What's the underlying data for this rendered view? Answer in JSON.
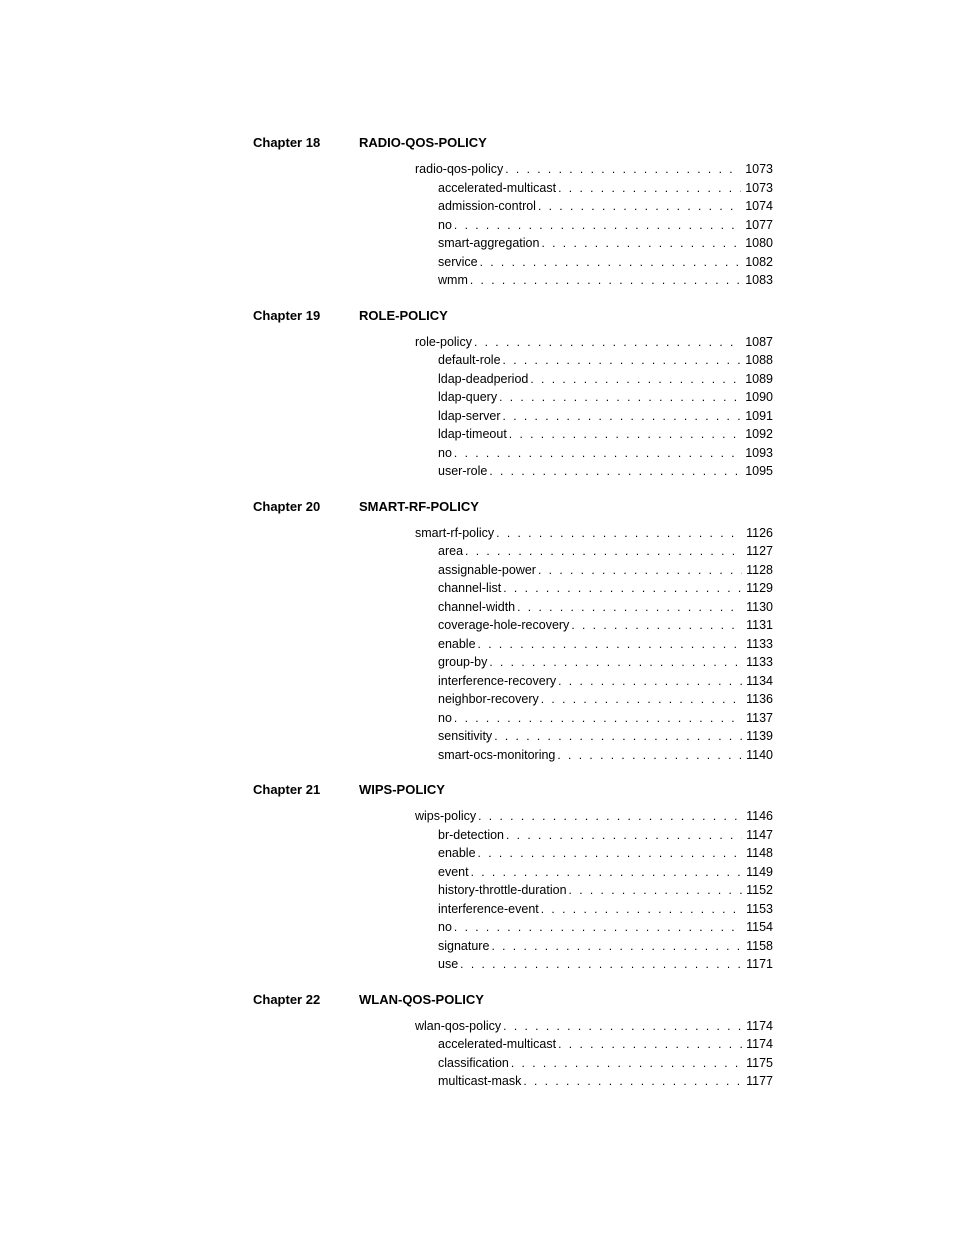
{
  "chapters": [
    {
      "num": "Chapter 18",
      "title": "RADIO-QOS-POLICY",
      "top_entries": [
        {
          "label": "radio-qos-policy",
          "page": "1073"
        }
      ],
      "sub_entries": [
        {
          "label": "accelerated-multicast",
          "page": "1073"
        },
        {
          "label": "admission-control",
          "page": "1074"
        },
        {
          "label": "no",
          "page": "1077"
        },
        {
          "label": "smart-aggregation",
          "page": "1080"
        },
        {
          "label": "service",
          "page": "1082"
        },
        {
          "label": "wmm",
          "page": "1083"
        }
      ]
    },
    {
      "num": "Chapter 19",
      "title": "ROLE-POLICY",
      "top_entries": [
        {
          "label": "role-policy",
          "page": "1087"
        }
      ],
      "sub_entries": [
        {
          "label": "default-role",
          "page": "1088"
        },
        {
          "label": "ldap-deadperiod",
          "page": "1089"
        },
        {
          "label": "ldap-query",
          "page": "1090"
        },
        {
          "label": "ldap-server",
          "page": "1091"
        },
        {
          "label": "ldap-timeout",
          "page": "1092"
        },
        {
          "label": "no",
          "page": "1093"
        },
        {
          "label": "user-role",
          "page": "1095"
        }
      ]
    },
    {
      "num": "Chapter 20",
      "title": "SMART-RF-POLICY",
      "top_entries": [
        {
          "label": "smart-rf-policy",
          "page": "1126"
        }
      ],
      "sub_entries": [
        {
          "label": "area",
          "page": "1127"
        },
        {
          "label": "assignable-power",
          "page": "1128"
        },
        {
          "label": "channel-list",
          "page": "1129"
        },
        {
          "label": "channel-width",
          "page": "1130"
        },
        {
          "label": "coverage-hole-recovery",
          "page": "1131"
        },
        {
          "label": "enable",
          "page": "1133"
        },
        {
          "label": "group-by",
          "page": "1133"
        },
        {
          "label": "interference-recovery",
          "page": "1134"
        },
        {
          "label": "neighbor-recovery",
          "page": "1136"
        },
        {
          "label": "no",
          "page": "1137"
        },
        {
          "label": "sensitivity",
          "page": "1139"
        },
        {
          "label": "smart-ocs-monitoring",
          "page": "1140"
        }
      ]
    },
    {
      "num": "Chapter 21",
      "title": "WIPS-POLICY",
      "top_entries": [
        {
          "label": "wips-policy",
          "page": "1146"
        }
      ],
      "sub_entries": [
        {
          "label": "br-detection",
          "page": "1147"
        },
        {
          "label": "enable",
          "page": "1148"
        },
        {
          "label": "event",
          "page": "1149"
        },
        {
          "label": "history-throttle-duration",
          "page": "1152"
        },
        {
          "label": "interference-event",
          "page": "1153"
        },
        {
          "label": "no",
          "page": "1154"
        },
        {
          "label": "signature",
          "page": "1158"
        },
        {
          "label": "use",
          "page": "1171"
        }
      ]
    },
    {
      "num": "Chapter 22",
      "title": "WLAN-QOS-POLICY",
      "top_entries": [
        {
          "label": "wlan-qos-policy",
          "page": "1174"
        }
      ],
      "sub_entries": [
        {
          "label": "accelerated-multicast",
          "page": "1174"
        },
        {
          "label": "classification",
          "page": "1175"
        },
        {
          "label": "multicast-mask",
          "page": "1177"
        }
      ]
    }
  ]
}
